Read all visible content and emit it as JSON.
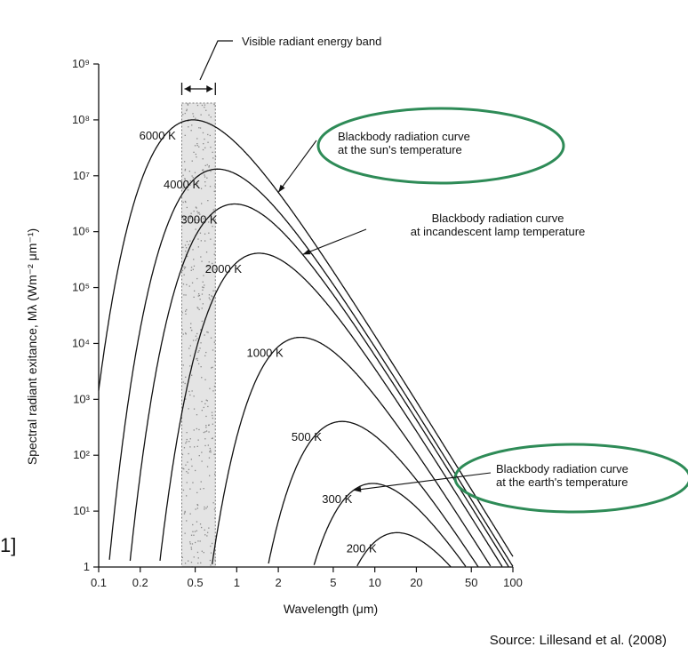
{
  "chart_data": {
    "type": "line",
    "title": "",
    "xlabel": "Wavelength (μm)",
    "ylabel": "Spectral radiant exitance, Mλ (Wm⁻² μm⁻¹)",
    "x_scale": "log",
    "y_scale": "log",
    "xlim": [
      0.1,
      100
    ],
    "ylim": [
      1,
      1000000000
    ],
    "x_ticks": [
      "0.1",
      "0.2",
      "0.5",
      "1",
      "2",
      "5",
      "10",
      "20",
      "50",
      "100"
    ],
    "y_ticks": [
      "1",
      "10¹",
      "10²",
      "10³",
      "10⁴",
      "10⁵",
      "10⁶",
      "10⁷",
      "10⁸",
      "10⁹"
    ],
    "grid": false,
    "series": [
      {
        "name": "6000 K",
        "temperature_K": 6000
      },
      {
        "name": "4000 K",
        "temperature_K": 4000
      },
      {
        "name": "3000 K",
        "temperature_K": 3000
      },
      {
        "name": "2000 K",
        "temperature_K": 2000
      },
      {
        "name": "1000 K",
        "temperature_K": 1000
      },
      {
        "name": "500 K",
        "temperature_K": 500
      },
      {
        "name": "300 K",
        "temperature_K": 300
      },
      {
        "name": "200 K",
        "temperature_K": 200
      }
    ],
    "visible_band": {
      "label": "Visible radiant energy band",
      "range_um": [
        0.4,
        0.7
      ]
    },
    "annotations": {
      "sun": [
        "Blackbody radiation curve",
        "at the sun's temperature"
      ],
      "lamp": [
        "Blackbody radiation curve",
        "at incandescent lamp temperature"
      ],
      "earth": [
        "Blackbody radiation curve",
        "at the earth's temperature"
      ]
    },
    "highlight_color": "#2e8b57"
  },
  "source": "Source: Lillesand et al. (2008)",
  "edge_fragment": "1]"
}
